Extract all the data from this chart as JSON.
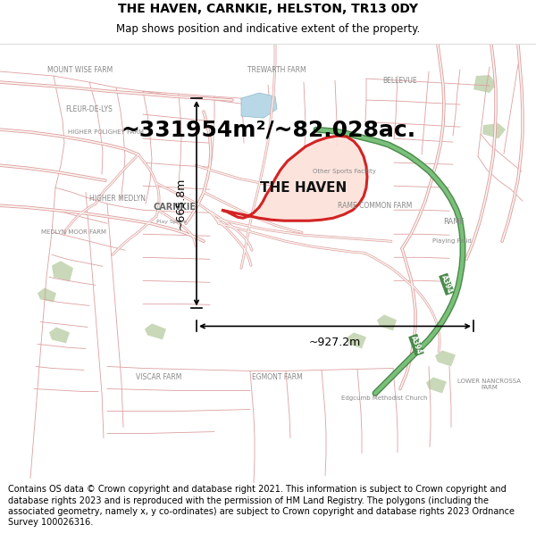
{
  "title_line1": "THE HAVEN, CARNKIE, HELSTON, TR13 0DY",
  "title_line2": "Map shows position and indicative extent of the property.",
  "area_text": "~331954m²/~82.028ac.",
  "label_main": "THE HAVEN",
  "sublabel": "Other Sports Facility",
  "dim_width": "~927.2m",
  "dim_height": "~665.8m",
  "footer": "Contains OS data © Crown copyright and database right 2021. This information is subject to Crown copyright and database rights 2023 and is reproduced with the permission of HM Land Registry. The polygons (including the associated geometry, namely x, y co-ordinates) are subject to Crown copyright and database rights 2023 Ordnance Survey 100026316.",
  "map_bg": "#f9f6f2",
  "title_fontsize": 10,
  "subtitle_fontsize": 8.5,
  "area_fontsize": 18,
  "label_fontsize": 11,
  "dim_fontsize": 9,
  "footer_fontsize": 7,
  "place_label_color": "#888888",
  "road_outline": "#e8a0a0",
  "road_fill": "#ffffff",
  "boundary_color": "#e08080",
  "property_outline": "#cc0000",
  "property_fill": "#fce8e0",
  "arrow_color": "#000000",
  "green_road_fill": "#6abf69",
  "green_road_outline": "#3d8a3d",
  "water_color": "#b8d8e8",
  "green_patch": "#c8d8b8"
}
